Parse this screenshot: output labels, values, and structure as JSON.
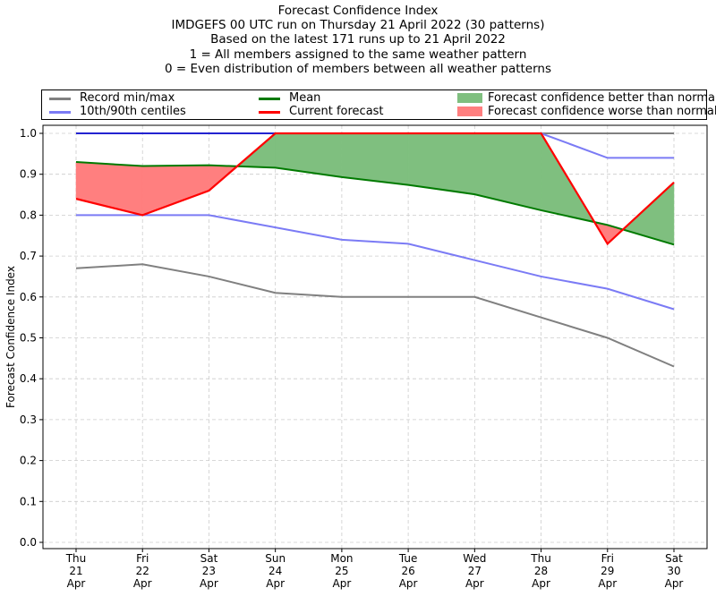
{
  "title_lines": [
    "Forecast Confidence Index",
    "IMDGEFS 00 UTC run on Thursday 21 April 2022 (30 patterns)",
    "Based on the latest 171 runs up to 21 April 2022",
    "1 = All members assigned to the same weather pattern",
    "0 = Even distribution of members between all weather patterns"
  ],
  "legend": {
    "record": "Record min/max",
    "centiles": "10th/90th centiles",
    "mean": "Mean",
    "current": "Current forecast",
    "better": "Forecast confidence better than normal",
    "worse": "Forecast confidence worse than normal"
  },
  "colors": {
    "record": "#808080",
    "centiles": "#7b7bf5",
    "max_line": "#2323d0",
    "mean": "#007a00",
    "current": "#ff0000",
    "better_fill": "#7fbf7f",
    "worse_fill": "#ff7f7f",
    "grid": "#cccccc"
  },
  "chart_data": {
    "type": "line",
    "title": "Forecast Confidence Index",
    "ylabel": "Forecast Confidence Index",
    "xlabel": "",
    "ylim": [
      0,
      1.0
    ],
    "yticks": [
      "0.0",
      "0.1",
      "0.2",
      "0.3",
      "0.4",
      "0.5",
      "0.6",
      "0.7",
      "0.8",
      "0.9",
      "1.0"
    ],
    "categories": [
      [
        "Thu",
        "21",
        "Apr"
      ],
      [
        "Fri",
        "22",
        "Apr"
      ],
      [
        "Sat",
        "23",
        "Apr"
      ],
      [
        "Sun",
        "24",
        "Apr"
      ],
      [
        "Mon",
        "25",
        "Apr"
      ],
      [
        "Tue",
        "26",
        "Apr"
      ],
      [
        "Wed",
        "27",
        "Apr"
      ],
      [
        "Thu",
        "28",
        "Apr"
      ],
      [
        "Fri",
        "29",
        "Apr"
      ],
      [
        "Sat",
        "30",
        "Apr"
      ]
    ],
    "grid": true,
    "legend_position": "top",
    "series": [
      {
        "name": "Record min/max",
        "role": "record_max",
        "values": [
          1.0,
          1.0,
          1.0,
          1.0,
          1.0,
          1.0,
          1.0,
          1.0,
          1.0,
          1.0
        ]
      },
      {
        "name": "Record min/max",
        "role": "record_min",
        "values": [
          0.67,
          0.68,
          0.65,
          0.61,
          0.6,
          0.6,
          0.6,
          0.55,
          0.5,
          0.43
        ]
      },
      {
        "name": "10th/90th centiles",
        "role": "p90",
        "values": [
          1.0,
          1.0,
          1.0,
          1.0,
          1.0,
          1.0,
          1.0,
          1.0,
          0.94,
          0.94
        ]
      },
      {
        "name": "10th/90th centiles",
        "role": "p10",
        "values": [
          0.8,
          0.8,
          0.8,
          0.77,
          0.74,
          0.73,
          0.69,
          0.65,
          0.62,
          0.57
        ]
      },
      {
        "name": "Mean",
        "role": "mean",
        "values": [
          0.93,
          0.92,
          0.922,
          0.916,
          0.893,
          0.874,
          0.851,
          0.812,
          0.776,
          0.728
        ]
      },
      {
        "name": "Current forecast",
        "role": "current",
        "values": [
          0.84,
          0.8,
          0.86,
          1.0,
          1.0,
          1.0,
          1.0,
          1.0,
          0.73,
          0.88
        ]
      }
    ]
  }
}
